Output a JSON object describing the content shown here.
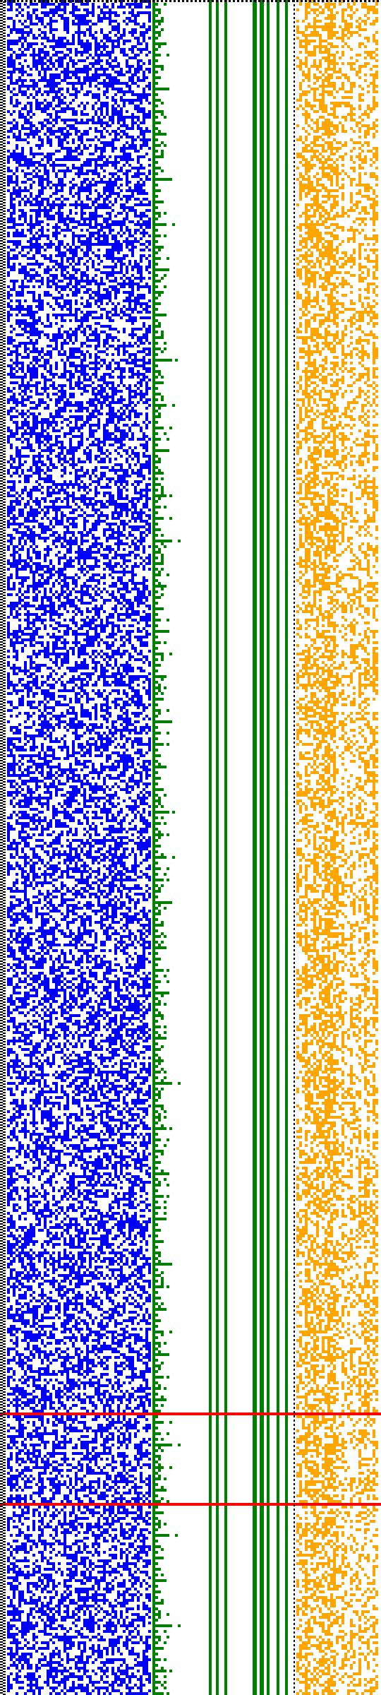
{
  "visualization": {
    "kind": "bit-pattern-trace",
    "background": "#ffffff",
    "border_color": "#000000",
    "border_style": "dotted",
    "grid": {
      "columns": 132,
      "rows": 600
    },
    "panels": [
      {
        "name": "random-bits-panel",
        "color": "#0000ff",
        "fill_ratio": 0.5
      },
      {
        "name": "staircase-counter-panel",
        "color": "#008000"
      },
      {
        "name": "stripe-columns-panel",
        "color": "#008000"
      },
      {
        "name": "sparse-bits-panel",
        "color": "#ffa500",
        "fill_ratio": 0.6
      }
    ],
    "markers": [
      {
        "name": "marker-line-1",
        "color": "#ff0000",
        "row": 500
      },
      {
        "name": "marker-line-2",
        "color": "#ff0000",
        "row": 532
      }
    ]
  }
}
